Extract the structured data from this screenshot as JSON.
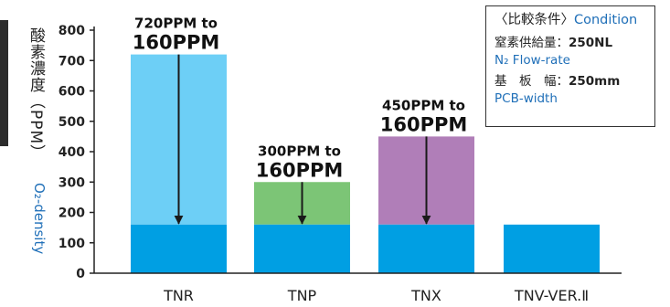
{
  "ylabel_jp": "酸素濃度（PPM）",
  "ylabel_en": "O₂-density",
  "legend": {
    "title_jp": "〈比較条件〉",
    "title_en": "Condition",
    "flow_label_jp": "窒素供給量：",
    "flow_value": "250NL",
    "flow_label_en": "N₂ Flow-rate",
    "width_label_jp": "基　板　幅：",
    "width_value": "250mm",
    "width_label_en": "PCB-width"
  },
  "chart_data": {
    "type": "bar",
    "categories": [
      "TNR",
      "TNP",
      "TNX",
      "TNV-VER.Ⅱ"
    ],
    "values": [
      720,
      300,
      450,
      160
    ],
    "base_value": 160,
    "ylim": [
      0,
      800
    ],
    "yticks": [
      0,
      100,
      200,
      300,
      400,
      500,
      600,
      700,
      800
    ],
    "xlabel": "",
    "ylabel": "酸素濃度（PPM） O₂-density",
    "grid": false,
    "annotations": [
      {
        "category": "TNR",
        "line1": "720PPM to",
        "line2": "160PPM",
        "from": 720,
        "to": 160
      },
      {
        "category": "TNP",
        "line1": "300PPM to",
        "line2": "160PPM",
        "from": 300,
        "to": 160
      },
      {
        "category": "TNX",
        "line1": "450PPM to",
        "line2": "160PPM",
        "from": 450,
        "to": 160
      }
    ],
    "colors": {
      "base": "#009fe3",
      "TNR": "#6dcff6",
      "TNP": "#7cc576",
      "TNX": "#b07eb8",
      "axis": "#222222",
      "arrow": "#1a1a1a"
    }
  }
}
